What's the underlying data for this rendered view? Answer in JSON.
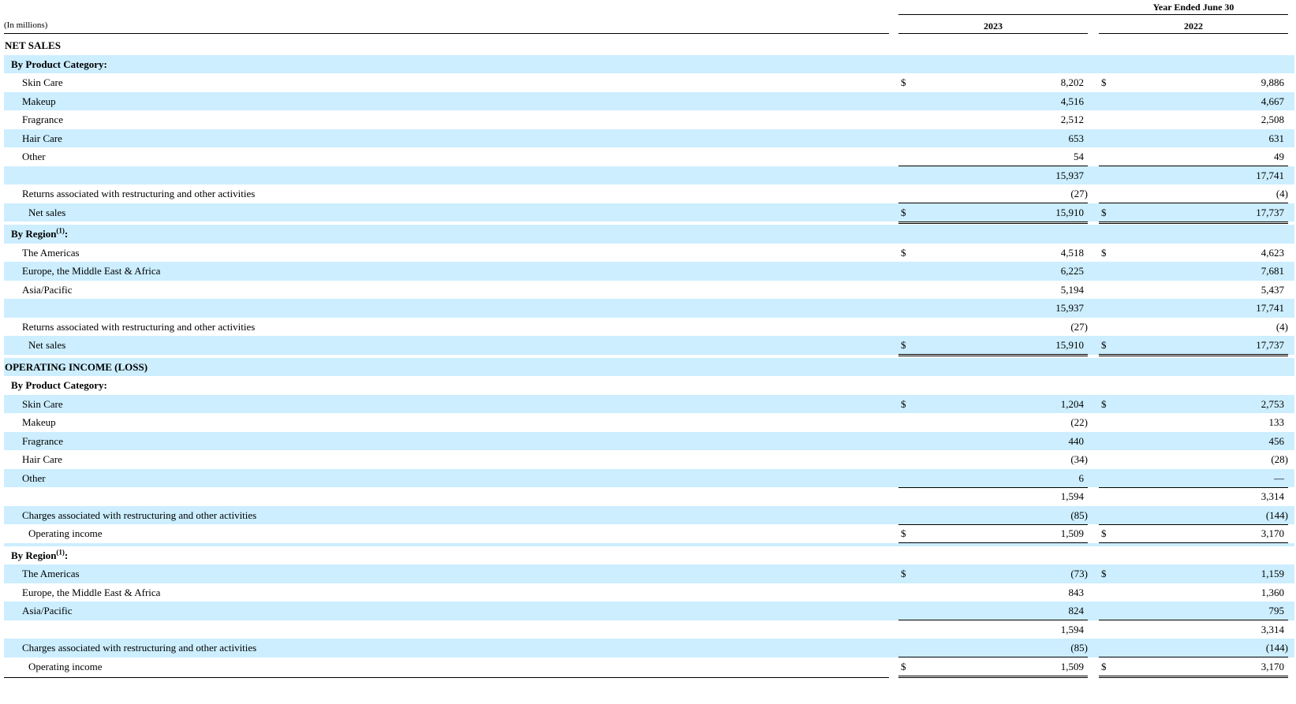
{
  "header": {
    "period": "Year Ended June 30",
    "units": "(In millions)",
    "years": [
      "2023",
      "2022"
    ]
  },
  "colors": {
    "row_shade": "#cceeff"
  },
  "currency_symbol": "$",
  "rows": [
    {
      "label": "NET SALES",
      "kind": "section"
    },
    {
      "label": "By Product Category:",
      "kind": "subsection"
    },
    {
      "label": "Skin Care",
      "kind": "item",
      "dollar": true,
      "v2023": "8,202",
      "v2022": "9,886"
    },
    {
      "label": "Makeup",
      "kind": "item",
      "v2023": "4,516",
      "v2022": "4,667"
    },
    {
      "label": "Fragrance",
      "kind": "item",
      "v2023": "2,512",
      "v2022": "2,508"
    },
    {
      "label": "Hair Care",
      "kind": "item",
      "v2023": "653",
      "v2022": "631"
    },
    {
      "label": "Other",
      "kind": "item",
      "v2023": "54",
      "v2022": "49"
    },
    {
      "label": "",
      "kind": "subtotal",
      "v2023": "15,937",
      "v2022": "17,741"
    },
    {
      "label": "Returns associated with restructuring and other activities",
      "kind": "adjustment",
      "v2023": "(27)",
      "v2022": "(4)"
    },
    {
      "label": "Net sales",
      "kind": "total",
      "dollar": true,
      "v2023": "15,910",
      "v2022": "17,737"
    },
    {
      "kind": "spacer"
    },
    {
      "label": "By Region",
      "footnote": "(1)",
      "suffix": ":",
      "kind": "subsection"
    },
    {
      "label": "The Americas",
      "kind": "item",
      "dollar": true,
      "v2023": "4,518",
      "v2022": "4,623"
    },
    {
      "label": "Europe, the Middle East & Africa",
      "kind": "item",
      "v2023": "6,225",
      "v2022": "7,681"
    },
    {
      "label": "Asia/Pacific",
      "kind": "item",
      "v2023": "5,194",
      "v2022": "5,437"
    },
    {
      "label": "",
      "kind": "subtotal",
      "v2023": "15,937",
      "v2022": "17,741"
    },
    {
      "label": "Returns associated with restructuring and other activities",
      "kind": "adjustment",
      "v2023": "(27)",
      "v2022": "(4)"
    },
    {
      "label": "Net sales",
      "kind": "total",
      "dollar": true,
      "v2023": "15,910",
      "v2022": "17,737"
    },
    {
      "kind": "spacer"
    },
    {
      "label": "OPERATING INCOME (LOSS)",
      "kind": "section"
    },
    {
      "label": "By Product Category:",
      "kind": "subsection"
    },
    {
      "label": "Skin Care",
      "kind": "item",
      "dollar": true,
      "v2023": "1,204",
      "v2022": "2,753"
    },
    {
      "label": "Makeup",
      "kind": "item",
      "v2023": "(22)",
      "v2022": "133"
    },
    {
      "label": "Fragrance",
      "kind": "item",
      "v2023": "440",
      "v2022": "456"
    },
    {
      "label": "Hair Care",
      "kind": "item",
      "v2023": "(34)",
      "v2022": "(28)"
    },
    {
      "label": "Other",
      "kind": "item",
      "v2023": "6",
      "v2022": "—"
    },
    {
      "label": "",
      "kind": "subtotal",
      "v2023": "1,594",
      "v2022": "3,314"
    },
    {
      "label": "Charges associated with restructuring and other activities",
      "kind": "adjustment",
      "v2023": "(85)",
      "v2022": "(144)"
    },
    {
      "label": "Operating income",
      "kind": "total",
      "dollar": true,
      "v2023": "1,509",
      "v2022": "3,170"
    },
    {
      "kind": "spacer"
    },
    {
      "label": "By Region",
      "footnote": "(1)",
      "suffix": ":",
      "kind": "subsection"
    },
    {
      "label": "The Americas",
      "kind": "item",
      "dollar": true,
      "v2023": "(73)",
      "v2022": "1,159"
    },
    {
      "label": "Europe, the Middle East & Africa",
      "kind": "item",
      "v2023": "843",
      "v2022": "1,360"
    },
    {
      "label": "Asia/Pacific",
      "kind": "item",
      "v2023": "824",
      "v2022": "795"
    },
    {
      "label": "",
      "kind": "subtotal",
      "v2023": "1,594",
      "v2022": "3,314"
    },
    {
      "label": "Charges associated with restructuring and other activities",
      "kind": "adjustment",
      "v2023": "(85)",
      "v2022": "(144)"
    },
    {
      "label": "Operating income",
      "kind": "total",
      "dollar": true,
      "v2023": "1,509",
      "v2022": "3,170",
      "last": true
    }
  ]
}
